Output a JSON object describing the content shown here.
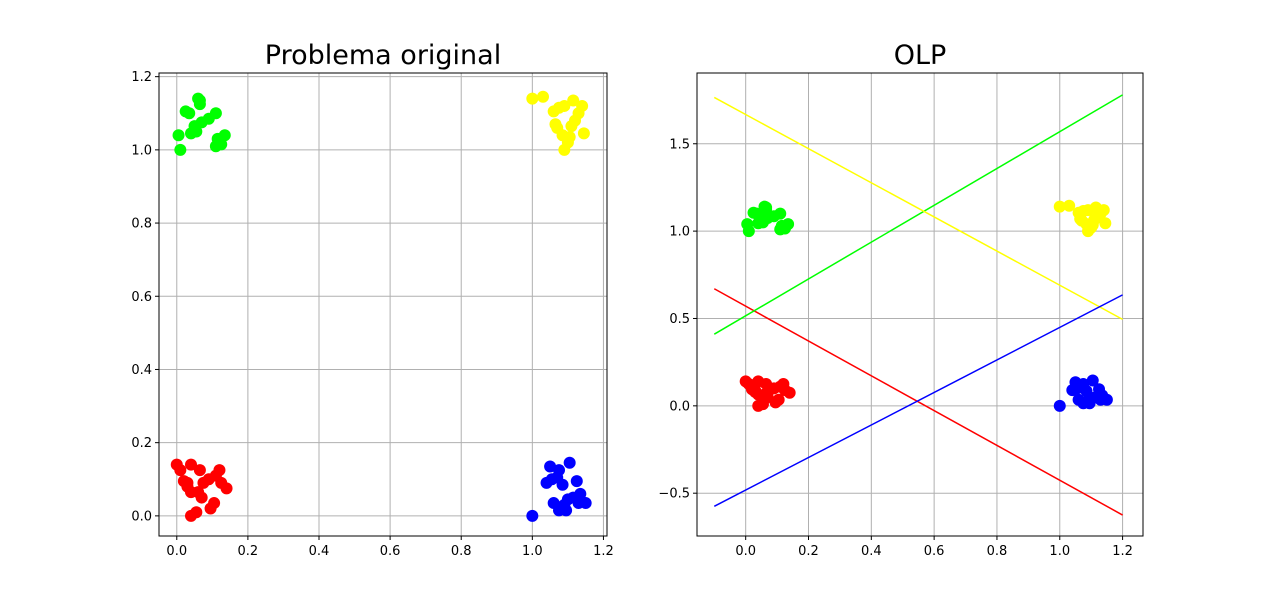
{
  "chart_data": [
    {
      "type": "scatter",
      "title": "Problema original",
      "xlabel": "",
      "ylabel": "",
      "xlim": [
        -0.05,
        1.21
      ],
      "ylim": [
        -0.055,
        1.21
      ],
      "xticks": [
        0.0,
        0.2,
        0.4,
        0.6,
        0.8,
        1.0,
        1.2
      ],
      "yticks": [
        0.0,
        0.2,
        0.4,
        0.6,
        0.8,
        1.0,
        1.2
      ],
      "xtick_labels": [
        "0.0",
        "0.2",
        "0.4",
        "0.6",
        "0.8",
        "1.0",
        "1.2"
      ],
      "ytick_labels": [
        "0.0",
        "0.2",
        "0.4",
        "0.6",
        "0.8",
        "1.0",
        "1.2"
      ],
      "grid": true,
      "series": [
        {
          "color": "#ff0000",
          "points": [
            [
              0.0,
              0.14
            ],
            [
              0.01,
              0.125
            ],
            [
              0.02,
              0.095
            ],
            [
              0.03,
              0.09
            ],
            [
              0.04,
              0.14
            ],
            [
              0.04,
              0.065
            ],
            [
              0.04,
              0.0
            ],
            [
              0.055,
              0.01
            ],
            [
              0.06,
              0.065
            ],
            [
              0.065,
              0.125
            ],
            [
              0.07,
              0.05
            ],
            [
              0.075,
              0.09
            ],
            [
              0.09,
              0.1
            ],
            [
              0.095,
              0.02
            ],
            [
              0.105,
              0.035
            ],
            [
              0.11,
              0.11
            ],
            [
              0.12,
              0.125
            ],
            [
              0.125,
              0.09
            ],
            [
              0.14,
              0.075
            ],
            [
              0.03,
              0.08
            ]
          ]
        },
        {
          "color": "#00ff00",
          "points": [
            [
              0.005,
              1.04
            ],
            [
              0.01,
              1.0
            ],
            [
              0.025,
              1.105
            ],
            [
              0.035,
              1.1
            ],
            [
              0.04,
              1.045
            ],
            [
              0.05,
              1.065
            ],
            [
              0.055,
              1.05
            ],
            [
              0.06,
              1.14
            ],
            [
              0.065,
              1.125
            ],
            [
              0.07,
              1.075
            ],
            [
              0.09,
              1.085
            ],
            [
              0.11,
              1.1
            ],
            [
              0.11,
              1.01
            ],
            [
              0.115,
              1.03
            ],
            [
              0.125,
              1.015
            ],
            [
              0.135,
              1.04
            ],
            [
              0.065,
              1.135
            ]
          ]
        },
        {
          "color": "#ffff00",
          "points": [
            [
              1.0,
              1.14
            ],
            [
              1.03,
              1.145
            ],
            [
              1.06,
              1.105
            ],
            [
              1.065,
              1.07
            ],
            [
              1.07,
              1.06
            ],
            [
              1.075,
              1.115
            ],
            [
              1.085,
              1.04
            ],
            [
              1.09,
              1.12
            ],
            [
              1.09,
              1.0
            ],
            [
              1.105,
              1.035
            ],
            [
              1.11,
              1.065
            ],
            [
              1.115,
              1.135
            ],
            [
              1.12,
              1.08
            ],
            [
              1.13,
              1.1
            ],
            [
              1.14,
              1.12
            ],
            [
              1.145,
              1.045
            ],
            [
              1.1,
              1.02
            ]
          ]
        },
        {
          "color": "#0000ff",
          "points": [
            [
              1.0,
              0.0
            ],
            [
              1.04,
              0.09
            ],
            [
              1.05,
              0.135
            ],
            [
              1.055,
              0.1
            ],
            [
              1.06,
              0.035
            ],
            [
              1.075,
              0.125
            ],
            [
              1.075,
              0.015
            ],
            [
              1.085,
              0.085
            ],
            [
              1.09,
              0.03
            ],
            [
              1.095,
              0.015
            ],
            [
              1.1,
              0.045
            ],
            [
              1.105,
              0.145
            ],
            [
              1.115,
              0.05
            ],
            [
              1.125,
              0.095
            ],
            [
              1.13,
              0.035
            ],
            [
              1.135,
              0.06
            ],
            [
              1.15,
              0.035
            ],
            [
              1.07,
              0.105
            ]
          ]
        }
      ]
    },
    {
      "type": "scatter",
      "title": "OLP",
      "xlabel": "",
      "ylabel": "",
      "xlim": [
        -0.155,
        1.265
      ],
      "ylim": [
        -0.745,
        1.905
      ],
      "xticks": [
        0.0,
        0.2,
        0.4,
        0.6,
        0.8,
        1.0,
        1.2
      ],
      "yticks": [
        -0.5,
        0.0,
        0.5,
        1.0,
        1.5
      ],
      "xtick_labels": [
        "0.0",
        "0.2",
        "0.4",
        "0.6",
        "0.8",
        "1.0",
        "1.2"
      ],
      "ytick_labels": [
        "−0.5",
        "0.0",
        "0.5",
        "1.0",
        "1.5"
      ],
      "grid": true,
      "series": [
        {
          "color": "#ff0000",
          "points": [
            [
              0.0,
              0.14
            ],
            [
              0.01,
              0.125
            ],
            [
              0.02,
              0.095
            ],
            [
              0.03,
              0.09
            ],
            [
              0.04,
              0.14
            ],
            [
              0.04,
              0.065
            ],
            [
              0.04,
              0.0
            ],
            [
              0.055,
              0.01
            ],
            [
              0.06,
              0.065
            ],
            [
              0.065,
              0.125
            ],
            [
              0.07,
              0.05
            ],
            [
              0.075,
              0.09
            ],
            [
              0.09,
              0.1
            ],
            [
              0.095,
              0.02
            ],
            [
              0.105,
              0.035
            ],
            [
              0.11,
              0.11
            ],
            [
              0.12,
              0.125
            ],
            [
              0.125,
              0.09
            ],
            [
              0.14,
              0.075
            ],
            [
              0.03,
              0.08
            ]
          ]
        },
        {
          "color": "#00ff00",
          "points": [
            [
              0.005,
              1.04
            ],
            [
              0.01,
              1.0
            ],
            [
              0.025,
              1.105
            ],
            [
              0.035,
              1.1
            ],
            [
              0.04,
              1.045
            ],
            [
              0.05,
              1.065
            ],
            [
              0.055,
              1.05
            ],
            [
              0.06,
              1.14
            ],
            [
              0.065,
              1.125
            ],
            [
              0.07,
              1.075
            ],
            [
              0.09,
              1.085
            ],
            [
              0.11,
              1.1
            ],
            [
              0.11,
              1.01
            ],
            [
              0.115,
              1.03
            ],
            [
              0.125,
              1.015
            ],
            [
              0.135,
              1.04
            ],
            [
              0.065,
              1.135
            ]
          ]
        },
        {
          "color": "#ffff00",
          "points": [
            [
              1.0,
              1.14
            ],
            [
              1.03,
              1.145
            ],
            [
              1.06,
              1.105
            ],
            [
              1.065,
              1.07
            ],
            [
              1.07,
              1.06
            ],
            [
              1.075,
              1.115
            ],
            [
              1.085,
              1.04
            ],
            [
              1.09,
              1.12
            ],
            [
              1.09,
              1.0
            ],
            [
              1.105,
              1.035
            ],
            [
              1.11,
              1.065
            ],
            [
              1.115,
              1.135
            ],
            [
              1.12,
              1.08
            ],
            [
              1.13,
              1.1
            ],
            [
              1.14,
              1.12
            ],
            [
              1.145,
              1.045
            ],
            [
              1.1,
              1.02
            ]
          ]
        },
        {
          "color": "#0000ff",
          "points": [
            [
              1.0,
              0.0
            ],
            [
              1.04,
              0.09
            ],
            [
              1.05,
              0.135
            ],
            [
              1.055,
              0.1
            ],
            [
              1.06,
              0.035
            ],
            [
              1.075,
              0.125
            ],
            [
              1.075,
              0.015
            ],
            [
              1.085,
              0.085
            ],
            [
              1.09,
              0.03
            ],
            [
              1.095,
              0.015
            ],
            [
              1.1,
              0.045
            ],
            [
              1.105,
              0.145
            ],
            [
              1.115,
              0.05
            ],
            [
              1.125,
              0.095
            ],
            [
              1.13,
              0.035
            ],
            [
              1.135,
              0.06
            ],
            [
              1.15,
              0.035
            ],
            [
              1.07,
              0.105
            ]
          ]
        }
      ],
      "lines": [
        {
          "color": "#ff0000",
          "x": [
            -0.1,
            1.2
          ],
          "y": [
            0.67,
            -0.625
          ]
        },
        {
          "color": "#00ff00",
          "x": [
            -0.1,
            1.2
          ],
          "y": [
            0.41,
            1.78
          ]
        },
        {
          "color": "#ffff00",
          "x": [
            -0.1,
            1.2
          ],
          "y": [
            1.765,
            0.495
          ]
        },
        {
          "color": "#0000ff",
          "x": [
            -0.1,
            1.2
          ],
          "y": [
            -0.575,
            0.635
          ]
        }
      ]
    }
  ]
}
